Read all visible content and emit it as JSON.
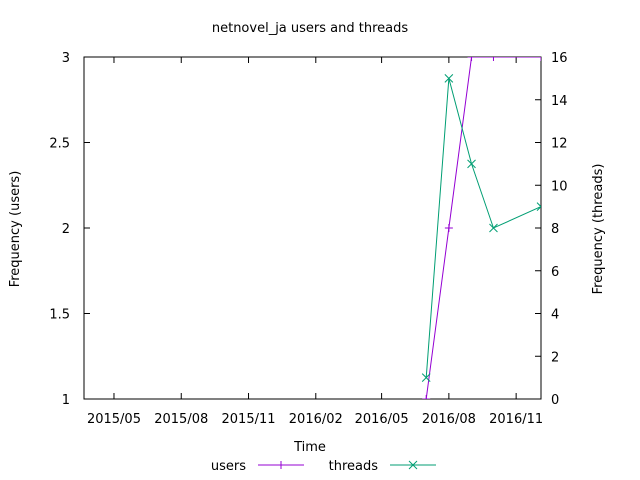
{
  "chart_data": {
    "type": "line",
    "title": "netnovel_ja users and threads",
    "xlabel": "Time",
    "ylabel": "Frequency (users)",
    "y2label": "Frequency (threads)",
    "xlim": [
      "2015-03-21",
      "2016-12-05"
    ],
    "ylim": [
      1,
      3
    ],
    "y2lim": [
      0,
      16
    ],
    "x_ticks": [
      {
        "date": "2015-05-01",
        "label": "2015/05"
      },
      {
        "date": "2015-08-01",
        "label": "2015/08"
      },
      {
        "date": "2015-11-01",
        "label": "2015/11"
      },
      {
        "date": "2016-02-01",
        "label": "2016/02"
      },
      {
        "date": "2016-05-01",
        "label": "2016/05"
      },
      {
        "date": "2016-08-01",
        "label": "2016/08"
      },
      {
        "date": "2016-11-01",
        "label": "2016/11"
      }
    ],
    "y_ticks": [
      "1",
      "1.5",
      "2",
      "2.5",
      "3"
    ],
    "y2_ticks": [
      "0",
      "2",
      "4",
      "6",
      "8",
      "10",
      "12",
      "14",
      "16"
    ],
    "grid": false,
    "legend": "bottom-center",
    "series": [
      {
        "name": "users",
        "axis": "y",
        "color": "#9400d3",
        "marker": "plus",
        "points": [
          {
            "x": "2016-07-01",
            "y": 1
          },
          {
            "x": "2016-08-01",
            "y": 2
          },
          {
            "x": "2016-09-01",
            "y": 3
          },
          {
            "x": "2016-10-01",
            "y": 3
          },
          {
            "x": "2016-12-05",
            "y": 3
          }
        ]
      },
      {
        "name": "threads",
        "axis": "y2",
        "color": "#009e73",
        "marker": "cross",
        "points": [
          {
            "x": "2016-07-01",
            "y": 1
          },
          {
            "x": "2016-08-01",
            "y": 15
          },
          {
            "x": "2016-09-01",
            "y": 11
          },
          {
            "x": "2016-10-01",
            "y": 8
          },
          {
            "x": "2016-12-05",
            "y": 9
          }
        ]
      }
    ]
  }
}
